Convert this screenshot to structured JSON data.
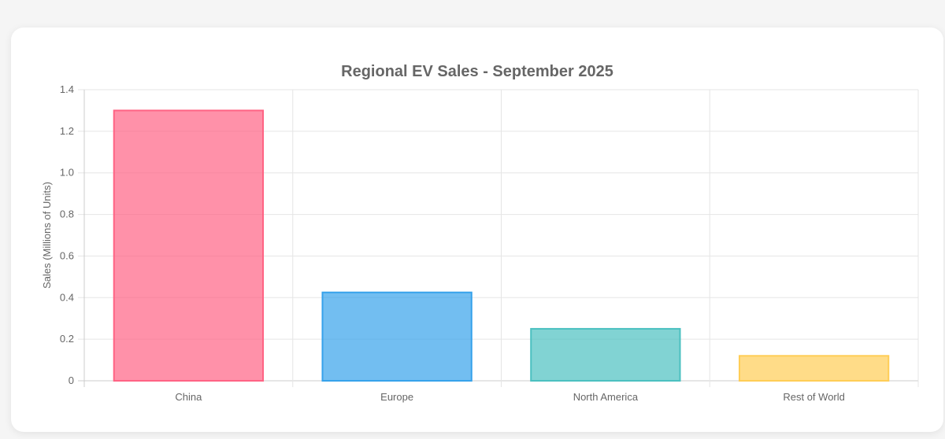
{
  "chart_data": {
    "type": "bar",
    "title": "Regional EV Sales - September 2025",
    "xlabel": "",
    "ylabel": "Sales (Millions of Units)",
    "categories": [
      "China",
      "Europe",
      "North America",
      "Rest of World"
    ],
    "values": [
      1.3,
      0.425,
      0.25,
      0.12
    ],
    "ylim": [
      0,
      1.4
    ],
    "yticks": [
      "0",
      "0.2",
      "0.4",
      "0.6",
      "0.8",
      "1.0",
      "1.2",
      "1.4"
    ],
    "grid": true,
    "legend": "none",
    "colors": [
      {
        "fill": "#ff6384",
        "stroke": "#ff6384"
      },
      {
        "fill": "#36a2eb",
        "stroke": "#36a2eb"
      },
      {
        "fill": "#4bc0c0",
        "stroke": "#4bc0c0"
      },
      {
        "fill": "#ffcd56",
        "stroke": "#ffcd56"
      }
    ]
  }
}
